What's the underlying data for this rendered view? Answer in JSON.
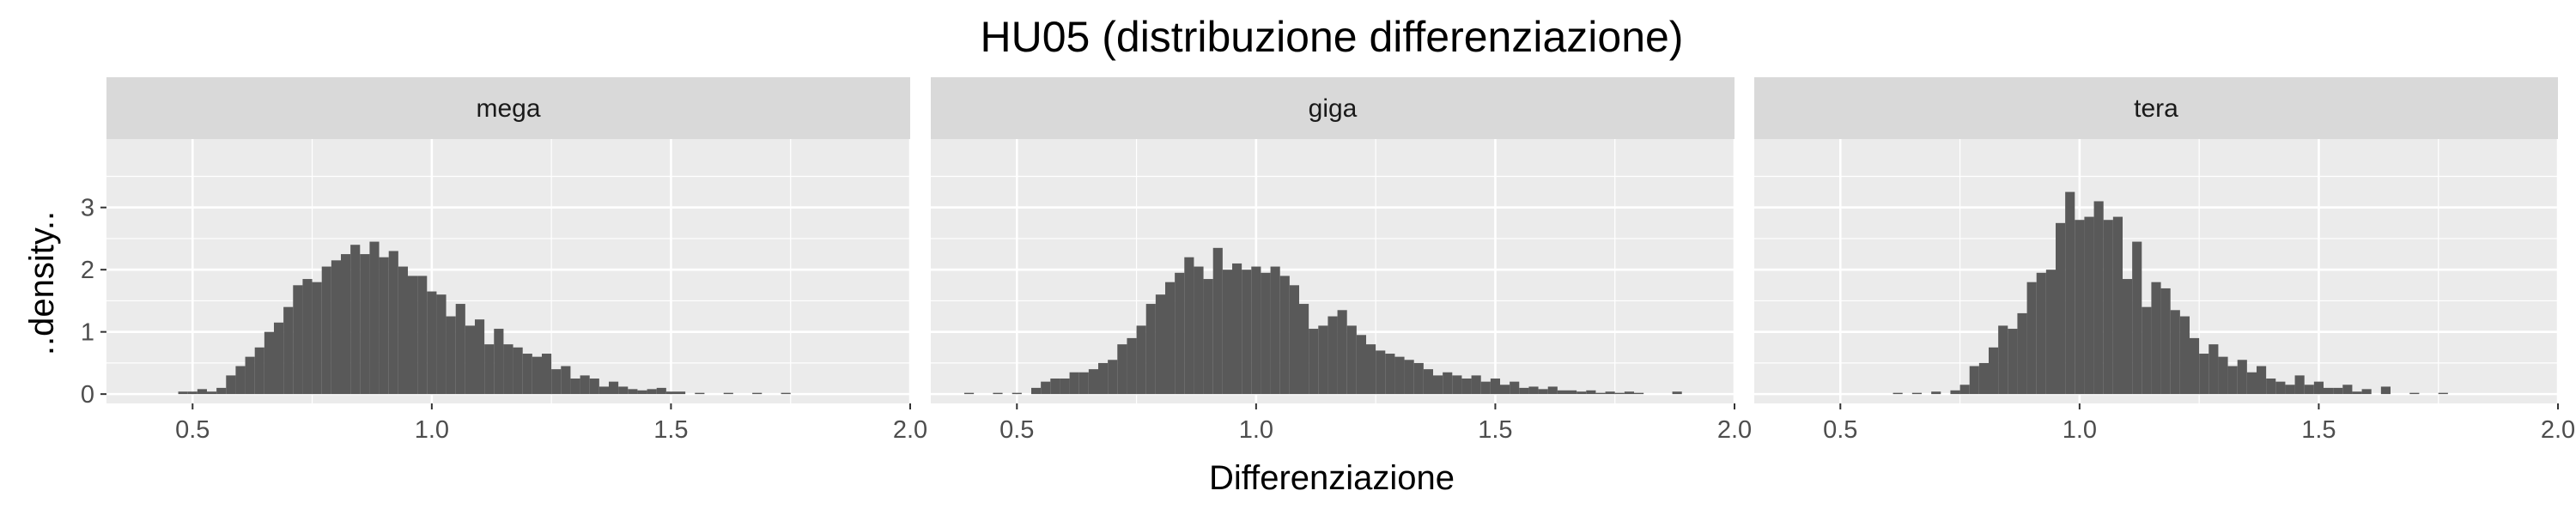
{
  "chart_data": {
    "type": "histogram",
    "title": "HU05 (distribuzione differenziazione)",
    "xlabel": "Differenziazione",
    "ylabel": "..density..",
    "xlim": [
      0.32,
      2.0
    ],
    "ylim": [
      -0.15,
      4.1
    ],
    "x_ticks": [
      0.5,
      1.0,
      1.5,
      2.0
    ],
    "x_tick_labels": [
      "0.5",
      "1.0",
      "1.5",
      "2.0"
    ],
    "y_ticks": [
      0,
      1,
      2,
      3
    ],
    "y_tick_labels": [
      "0",
      "1",
      "2",
      "3"
    ],
    "bin_width": 0.02,
    "bar_color": "#595959",
    "panel_background": "#ebebeb",
    "strip_background": "#d9d9d9",
    "grid": true,
    "facets": [
      {
        "name": "mega",
        "bins": [
          {
            "x": 0.48,
            "density": 0.04
          },
          {
            "x": 0.5,
            "density": 0.04
          },
          {
            "x": 0.52,
            "density": 0.08
          },
          {
            "x": 0.54,
            "density": 0.04
          },
          {
            "x": 0.56,
            "density": 0.1
          },
          {
            "x": 0.58,
            "density": 0.3
          },
          {
            "x": 0.6,
            "density": 0.45
          },
          {
            "x": 0.62,
            "density": 0.6
          },
          {
            "x": 0.64,
            "density": 0.75
          },
          {
            "x": 0.66,
            "density": 1.0
          },
          {
            "x": 0.68,
            "density": 1.15
          },
          {
            "x": 0.7,
            "density": 1.4
          },
          {
            "x": 0.72,
            "density": 1.75
          },
          {
            "x": 0.74,
            "density": 1.85
          },
          {
            "x": 0.76,
            "density": 1.8
          },
          {
            "x": 0.78,
            "density": 2.05
          },
          {
            "x": 0.8,
            "density": 2.15
          },
          {
            "x": 0.82,
            "density": 2.25
          },
          {
            "x": 0.84,
            "density": 2.4
          },
          {
            "x": 0.86,
            "density": 2.25
          },
          {
            "x": 0.88,
            "density": 2.45
          },
          {
            "x": 0.9,
            "density": 2.2
          },
          {
            "x": 0.92,
            "density": 2.3
          },
          {
            "x": 0.94,
            "density": 2.05
          },
          {
            "x": 0.96,
            "density": 1.9
          },
          {
            "x": 0.98,
            "density": 1.9
          },
          {
            "x": 1.0,
            "density": 1.65
          },
          {
            "x": 1.02,
            "density": 1.6
          },
          {
            "x": 1.04,
            "density": 1.25
          },
          {
            "x": 1.06,
            "density": 1.45
          },
          {
            "x": 1.08,
            "density": 1.1
          },
          {
            "x": 1.1,
            "density": 1.2
          },
          {
            "x": 1.12,
            "density": 0.8
          },
          {
            "x": 1.14,
            "density": 1.05
          },
          {
            "x": 1.16,
            "density": 0.8
          },
          {
            "x": 1.18,
            "density": 0.75
          },
          {
            "x": 1.2,
            "density": 0.65
          },
          {
            "x": 1.22,
            "density": 0.6
          },
          {
            "x": 1.24,
            "density": 0.65
          },
          {
            "x": 1.26,
            "density": 0.4
          },
          {
            "x": 1.28,
            "density": 0.45
          },
          {
            "x": 1.3,
            "density": 0.25
          },
          {
            "x": 1.32,
            "density": 0.3
          },
          {
            "x": 1.34,
            "density": 0.25
          },
          {
            "x": 1.36,
            "density": 0.12
          },
          {
            "x": 1.38,
            "density": 0.2
          },
          {
            "x": 1.4,
            "density": 0.12
          },
          {
            "x": 1.42,
            "density": 0.08
          },
          {
            "x": 1.44,
            "density": 0.06
          },
          {
            "x": 1.46,
            "density": 0.08
          },
          {
            "x": 1.48,
            "density": 0.1
          },
          {
            "x": 1.5,
            "density": 0.04
          },
          {
            "x": 1.52,
            "density": 0.04
          },
          {
            "x": 1.56,
            "density": 0.02
          },
          {
            "x": 1.62,
            "density": 0.02
          },
          {
            "x": 1.68,
            "density": 0.02
          },
          {
            "x": 1.74,
            "density": 0.02
          }
        ]
      },
      {
        "name": "giga",
        "bins": [
          {
            "x": 0.4,
            "density": 0.02
          },
          {
            "x": 0.46,
            "density": 0.02
          },
          {
            "x": 0.5,
            "density": 0.02
          },
          {
            "x": 0.54,
            "density": 0.1
          },
          {
            "x": 0.56,
            "density": 0.2
          },
          {
            "x": 0.58,
            "density": 0.25
          },
          {
            "x": 0.6,
            "density": 0.25
          },
          {
            "x": 0.62,
            "density": 0.35
          },
          {
            "x": 0.64,
            "density": 0.35
          },
          {
            "x": 0.66,
            "density": 0.4
          },
          {
            "x": 0.68,
            "density": 0.5
          },
          {
            "x": 0.7,
            "density": 0.55
          },
          {
            "x": 0.72,
            "density": 0.8
          },
          {
            "x": 0.74,
            "density": 0.9
          },
          {
            "x": 0.76,
            "density": 1.1
          },
          {
            "x": 0.78,
            "density": 1.45
          },
          {
            "x": 0.8,
            "density": 1.6
          },
          {
            "x": 0.82,
            "density": 1.8
          },
          {
            "x": 0.84,
            "density": 1.95
          },
          {
            "x": 0.86,
            "density": 2.2
          },
          {
            "x": 0.88,
            "density": 2.05
          },
          {
            "x": 0.9,
            "density": 1.85
          },
          {
            "x": 0.92,
            "density": 2.35
          },
          {
            "x": 0.94,
            "density": 2.0
          },
          {
            "x": 0.96,
            "density": 2.1
          },
          {
            "x": 0.98,
            "density": 2.0
          },
          {
            "x": 1.0,
            "density": 2.05
          },
          {
            "x": 1.02,
            "density": 1.95
          },
          {
            "x": 1.04,
            "density": 2.05
          },
          {
            "x": 1.06,
            "density": 1.9
          },
          {
            "x": 1.08,
            "density": 1.75
          },
          {
            "x": 1.1,
            "density": 1.45
          },
          {
            "x": 1.12,
            "density": 1.05
          },
          {
            "x": 1.14,
            "density": 1.1
          },
          {
            "x": 1.16,
            "density": 1.25
          },
          {
            "x": 1.18,
            "density": 1.35
          },
          {
            "x": 1.2,
            "density": 1.1
          },
          {
            "x": 1.22,
            "density": 0.95
          },
          {
            "x": 1.24,
            "density": 0.8
          },
          {
            "x": 1.26,
            "density": 0.7
          },
          {
            "x": 1.28,
            "density": 0.65
          },
          {
            "x": 1.3,
            "density": 0.6
          },
          {
            "x": 1.32,
            "density": 0.55
          },
          {
            "x": 1.34,
            "density": 0.5
          },
          {
            "x": 1.36,
            "density": 0.4
          },
          {
            "x": 1.38,
            "density": 0.3
          },
          {
            "x": 1.4,
            "density": 0.35
          },
          {
            "x": 1.42,
            "density": 0.3
          },
          {
            "x": 1.44,
            "density": 0.25
          },
          {
            "x": 1.46,
            "density": 0.3
          },
          {
            "x": 1.48,
            "density": 0.2
          },
          {
            "x": 1.5,
            "density": 0.25
          },
          {
            "x": 1.52,
            "density": 0.15
          },
          {
            "x": 1.54,
            "density": 0.2
          },
          {
            "x": 1.56,
            "density": 0.1
          },
          {
            "x": 1.58,
            "density": 0.12
          },
          {
            "x": 1.6,
            "density": 0.08
          },
          {
            "x": 1.62,
            "density": 0.12
          },
          {
            "x": 1.64,
            "density": 0.06
          },
          {
            "x": 1.66,
            "density": 0.06
          },
          {
            "x": 1.68,
            "density": 0.04
          },
          {
            "x": 1.7,
            "density": 0.06
          },
          {
            "x": 1.72,
            "density": 0.02
          },
          {
            "x": 1.74,
            "density": 0.04
          },
          {
            "x": 1.76,
            "density": 0.02
          },
          {
            "x": 1.78,
            "density": 0.04
          },
          {
            "x": 1.8,
            "density": 0.02
          },
          {
            "x": 1.88,
            "density": 0.04
          }
        ]
      },
      {
        "name": "tera",
        "bins": [
          {
            "x": 0.62,
            "density": 0.02
          },
          {
            "x": 0.66,
            "density": 0.02
          },
          {
            "x": 0.7,
            "density": 0.04
          },
          {
            "x": 0.74,
            "density": 0.06
          },
          {
            "x": 0.76,
            "density": 0.15
          },
          {
            "x": 0.78,
            "density": 0.45
          },
          {
            "x": 0.8,
            "density": 0.5
          },
          {
            "x": 0.82,
            "density": 0.75
          },
          {
            "x": 0.84,
            "density": 1.1
          },
          {
            "x": 0.86,
            "density": 1.05
          },
          {
            "x": 0.88,
            "density": 1.3
          },
          {
            "x": 0.9,
            "density": 1.8
          },
          {
            "x": 0.92,
            "density": 1.95
          },
          {
            "x": 0.94,
            "density": 2.0
          },
          {
            "x": 0.96,
            "density": 2.75
          },
          {
            "x": 0.98,
            "density": 3.25
          },
          {
            "x": 1.0,
            "density": 2.8
          },
          {
            "x": 1.02,
            "density": 2.85
          },
          {
            "x": 1.04,
            "density": 3.1
          },
          {
            "x": 1.06,
            "density": 2.8
          },
          {
            "x": 1.08,
            "density": 2.85
          },
          {
            "x": 1.1,
            "density": 1.85
          },
          {
            "x": 1.12,
            "density": 2.45
          },
          {
            "x": 1.14,
            "density": 1.4
          },
          {
            "x": 1.16,
            "density": 1.8
          },
          {
            "x": 1.18,
            "density": 1.7
          },
          {
            "x": 1.2,
            "density": 1.35
          },
          {
            "x": 1.22,
            "density": 1.25
          },
          {
            "x": 1.24,
            "density": 0.9
          },
          {
            "x": 1.26,
            "density": 0.65
          },
          {
            "x": 1.28,
            "density": 0.8
          },
          {
            "x": 1.3,
            "density": 0.6
          },
          {
            "x": 1.32,
            "density": 0.45
          },
          {
            "x": 1.34,
            "density": 0.55
          },
          {
            "x": 1.36,
            "density": 0.35
          },
          {
            "x": 1.38,
            "density": 0.45
          },
          {
            "x": 1.4,
            "density": 0.25
          },
          {
            "x": 1.42,
            "density": 0.2
          },
          {
            "x": 1.44,
            "density": 0.15
          },
          {
            "x": 1.46,
            "density": 0.3
          },
          {
            "x": 1.48,
            "density": 0.15
          },
          {
            "x": 1.5,
            "density": 0.2
          },
          {
            "x": 1.52,
            "density": 0.1
          },
          {
            "x": 1.54,
            "density": 0.1
          },
          {
            "x": 1.56,
            "density": 0.15
          },
          {
            "x": 1.58,
            "density": 0.04
          },
          {
            "x": 1.6,
            "density": 0.08
          },
          {
            "x": 1.64,
            "density": 0.12
          },
          {
            "x": 1.7,
            "density": 0.02
          },
          {
            "x": 1.76,
            "density": 0.02
          }
        ]
      }
    ]
  }
}
